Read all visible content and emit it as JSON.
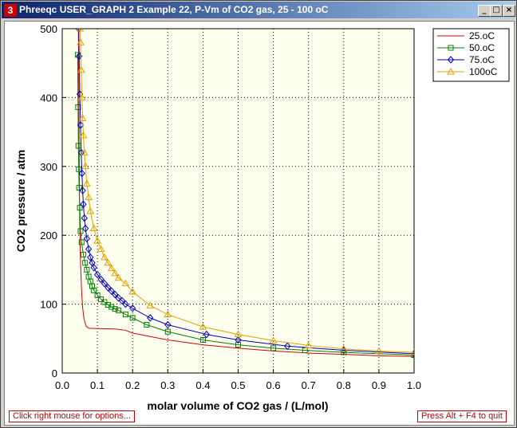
{
  "window": {
    "title": "Phreeqc USER_GRAPH 2 Example 22, P-Vm of CO2 gas, 25 - 100 oC",
    "icon_glyph": "3",
    "minimize_glyph": "_",
    "maximize_glyph": "□",
    "close_glyph": "×"
  },
  "status": {
    "left": "Click right mouse for options...",
    "right": "Press Alt + F4 to quit"
  },
  "colors": {
    "plot_background": "#fffff0",
    "series_25": "#d00000",
    "series_50": "#008000",
    "series_75": "#0000c0",
    "series_100": "#e0a000"
  },
  "chart_data": {
    "type": "line",
    "xlabel": "molar volume of CO2 gas / (L/mol)",
    "ylabel": "CO2 pressure / atm",
    "xlim": [
      0,
      1
    ],
    "ylim": [
      0,
      500
    ],
    "x_ticks": [
      "0.0",
      "0.1",
      "0.2",
      "0.3",
      "0.4",
      "0.5",
      "0.6",
      "0.7",
      "0.8",
      "0.9",
      "1.0"
    ],
    "y_ticks": [
      "0",
      "100",
      "200",
      "300",
      "400",
      "500"
    ],
    "grid": true,
    "legend_position": "top-right",
    "series": [
      {
        "name": "25.oC",
        "color": "#d00000",
        "marker": "none",
        "points": [
          [
            0.046,
            500
          ],
          [
            0.047,
            420
          ],
          [
            0.048,
            330
          ],
          [
            0.049,
            260
          ],
          [
            0.05,
            210
          ],
          [
            0.052,
            160
          ],
          [
            0.055,
            120
          ],
          [
            0.058,
            95
          ],
          [
            0.062,
            78
          ],
          [
            0.068,
            68
          ],
          [
            0.075,
            65
          ],
          [
            0.1,
            64.5
          ],
          [
            0.15,
            64
          ],
          [
            0.18,
            62
          ],
          [
            0.2,
            58
          ],
          [
            0.25,
            53
          ],
          [
            0.3,
            48
          ],
          [
            0.4,
            41
          ],
          [
            0.5,
            36
          ],
          [
            0.6,
            32
          ],
          [
            0.7,
            29
          ],
          [
            0.8,
            27
          ],
          [
            0.9,
            25
          ],
          [
            1.0,
            24
          ]
        ]
      },
      {
        "name": "50.oC",
        "color": "#008000",
        "marker": "square",
        "points": [
          [
            0.044,
            462
          ],
          [
            0.045,
            386
          ],
          [
            0.046,
            330
          ],
          [
            0.047,
            296
          ],
          [
            0.048,
            269
          ],
          [
            0.05,
            240
          ],
          [
            0.052,
            206
          ],
          [
            0.055,
            190
          ],
          [
            0.06,
            172
          ],
          [
            0.065,
            160
          ],
          [
            0.07,
            150
          ],
          [
            0.075,
            140
          ],
          [
            0.08,
            133
          ],
          [
            0.085,
            126
          ],
          [
            0.09,
            120
          ],
          [
            0.1,
            113
          ],
          [
            0.11,
            107
          ],
          [
            0.12,
            103
          ],
          [
            0.13,
            99
          ],
          [
            0.14,
            96
          ],
          [
            0.15,
            93
          ],
          [
            0.16,
            91
          ],
          [
            0.18,
            85
          ],
          [
            0.2,
            80
          ],
          [
            0.24,
            70
          ],
          [
            0.3,
            60
          ],
          [
            0.4,
            48
          ],
          [
            0.5,
            41
          ],
          [
            0.6,
            36
          ],
          [
            0.69,
            33
          ],
          [
            0.8,
            30
          ],
          [
            1.0,
            26
          ]
        ]
      },
      {
        "name": "75.oC",
        "color": "#0000c0",
        "marker": "diamond",
        "points": [
          [
            0.047,
            500
          ],
          [
            0.048,
            460
          ],
          [
            0.05,
            405
          ],
          [
            0.052,
            360
          ],
          [
            0.054,
            320
          ],
          [
            0.056,
            290
          ],
          [
            0.058,
            265
          ],
          [
            0.06,
            245
          ],
          [
            0.063,
            225
          ],
          [
            0.066,
            210
          ],
          [
            0.07,
            195
          ],
          [
            0.075,
            180
          ],
          [
            0.08,
            168
          ],
          [
            0.085,
            160
          ],
          [
            0.09,
            153
          ],
          [
            0.1,
            143
          ],
          [
            0.11,
            136
          ],
          [
            0.12,
            130
          ],
          [
            0.13,
            124
          ],
          [
            0.14,
            119
          ],
          [
            0.15,
            114
          ],
          [
            0.16,
            109
          ],
          [
            0.17,
            105
          ],
          [
            0.18,
            100
          ],
          [
            0.2,
            94
          ],
          [
            0.25,
            80
          ],
          [
            0.3,
            70
          ],
          [
            0.41,
            56
          ],
          [
            0.5,
            48
          ],
          [
            0.64,
            39
          ],
          [
            0.8,
            33
          ],
          [
            1.0,
            28
          ]
        ]
      },
      {
        "name": "100oC",
        "color": "#e0a000",
        "marker": "triangle",
        "points": [
          [
            0.051,
            500
          ],
          [
            0.052,
            480
          ],
          [
            0.054,
            440
          ],
          [
            0.056,
            400
          ],
          [
            0.058,
            370
          ],
          [
            0.06,
            345
          ],
          [
            0.063,
            320
          ],
          [
            0.066,
            300
          ],
          [
            0.07,
            275
          ],
          [
            0.075,
            255
          ],
          [
            0.08,
            235
          ],
          [
            0.09,
            210
          ],
          [
            0.1,
            192
          ],
          [
            0.11,
            180
          ],
          [
            0.12,
            168
          ],
          [
            0.13,
            160
          ],
          [
            0.14,
            152
          ],
          [
            0.15,
            145
          ],
          [
            0.16,
            138
          ],
          [
            0.18,
            130
          ],
          [
            0.2,
            118
          ],
          [
            0.25,
            98
          ],
          [
            0.3,
            85
          ],
          [
            0.4,
            67
          ],
          [
            0.5,
            56
          ],
          [
            0.6,
            47
          ],
          [
            0.7,
            40
          ],
          [
            0.8,
            35
          ],
          [
            0.9,
            32
          ],
          [
            1.0,
            30
          ]
        ]
      }
    ]
  }
}
